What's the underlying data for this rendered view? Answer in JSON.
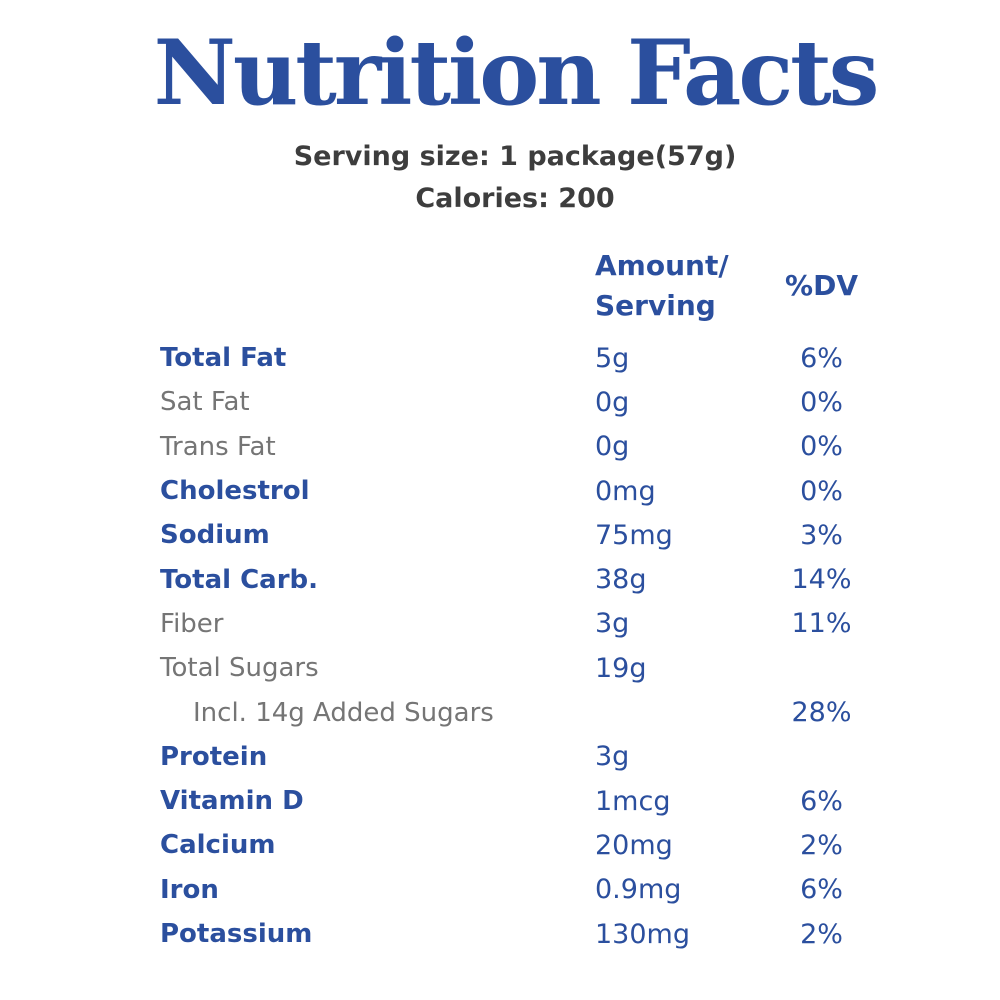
{
  "header": {
    "title": "Nutrition Facts",
    "serving_size": "Serving size: 1 package(57g)",
    "calories": "Calories: 200"
  },
  "colors": {
    "brand_blue": "#2b4f9e",
    "label_gray": "#757575",
    "subtitle_gray": "#3d3d3d"
  },
  "table": {
    "headers": {
      "amount_line1": "Amount/",
      "amount_line2": "Serving",
      "dv": "%DV"
    },
    "rows": [
      {
        "label": "Total Fat",
        "amount": "5g",
        "dv": "6%",
        "style": "bold",
        "indent": false
      },
      {
        "label": "Sat Fat",
        "amount": "0g",
        "dv": "0%",
        "style": "regular",
        "indent": false
      },
      {
        "label": "Trans Fat",
        "amount": "0g",
        "dv": "0%",
        "style": "regular",
        "indent": false
      },
      {
        "label": "Cholestrol",
        "amount": "0mg",
        "dv": "0%",
        "style": "bold",
        "indent": false
      },
      {
        "label": "Sodium",
        "amount": "75mg",
        "dv": "3%",
        "style": "bold",
        "indent": false
      },
      {
        "label": "Total Carb.",
        "amount": "38g",
        "dv": "14%",
        "style": "bold",
        "indent": false
      },
      {
        "label": "Fiber",
        "amount": "3g",
        "dv": "11%",
        "style": "regular",
        "indent": false
      },
      {
        "label": "Total Sugars",
        "amount": "19g",
        "dv": "",
        "style": "regular",
        "indent": false
      },
      {
        "label": "Incl. 14g Added Sugars",
        "amount": "",
        "dv": "28%",
        "style": "regular",
        "indent": true
      },
      {
        "label": "Protein",
        "amount": "3g",
        "dv": "",
        "style": "bold",
        "indent": false
      },
      {
        "label": "Vitamin D",
        "amount": "1mcg",
        "dv": "6%",
        "style": "bold",
        "indent": false
      },
      {
        "label": "Calcium",
        "amount": "20mg",
        "dv": "2%",
        "style": "bold",
        "indent": false
      },
      {
        "label": "Iron",
        "amount": "0.9mg",
        "dv": "6%",
        "style": "bold",
        "indent": false
      },
      {
        "label": "Potassium",
        "amount": "130mg",
        "dv": "2%",
        "style": "bold",
        "indent": false
      }
    ]
  }
}
